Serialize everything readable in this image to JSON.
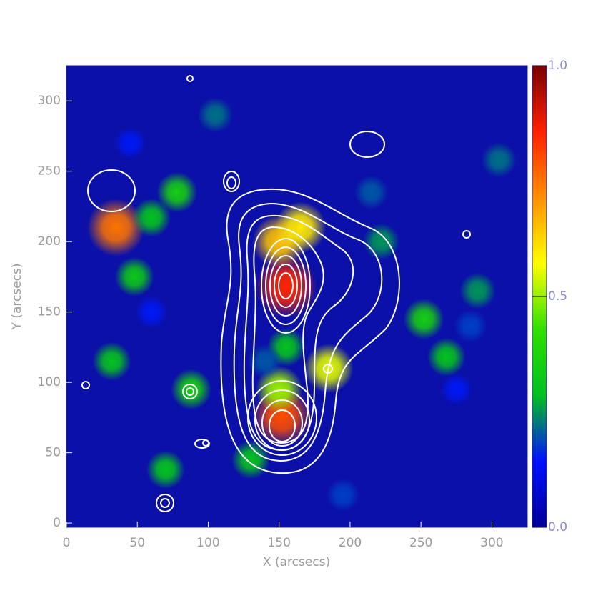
{
  "chart_data": {
    "type": "heatmap",
    "xlabel": "X (arcsecs)",
    "ylabel": "Y (arcsecs)",
    "xlim": [
      0,
      325
    ],
    "ylim": [
      -3,
      325
    ],
    "xticks": [
      0,
      50,
      100,
      150,
      200,
      250,
      300
    ],
    "yticks": [
      0,
      50,
      100,
      150,
      200,
      250,
      300
    ],
    "background": "#0a10a8",
    "colormap": [
      "#000096",
      "#0010ff",
      "#00c020",
      "#30e000",
      "#ffff00",
      "#ff9000",
      "#ff2000",
      "#7a0000"
    ],
    "clim": [
      0,
      1
    ],
    "cticks": [
      {
        "value": 0,
        "label": "0.0"
      },
      {
        "value": 0.5,
        "label": "0.5"
      },
      {
        "value": 1,
        "label": "1.0"
      }
    ],
    "x": [
      35,
      155,
      150,
      165,
      152,
      150,
      185,
      78,
      60,
      48,
      32,
      88,
      70,
      130,
      252,
      268,
      290,
      305,
      105,
      215,
      222,
      155,
      140,
      285,
      195,
      45,
      275,
      60
    ],
    "y": [
      210,
      168,
      200,
      210,
      76,
      95,
      110,
      235,
      217,
      175,
      115,
      95,
      38,
      45,
      145,
      118,
      165,
      258,
      290,
      235,
      200,
      125,
      115,
      140,
      20,
      270,
      95,
      150
    ],
    "values": [
      0.75,
      0.85,
      0.65,
      0.6,
      0.8,
      0.5,
      0.55,
      0.35,
      0.3,
      0.32,
      0.3,
      0.35,
      0.3,
      0.3,
      0.35,
      0.3,
      0.25,
      0.22,
      0.22,
      0.2,
      0.25,
      0.3,
      0.2,
      0.18,
      0.18,
      0.15,
      0.15,
      0.15
    ]
  }
}
